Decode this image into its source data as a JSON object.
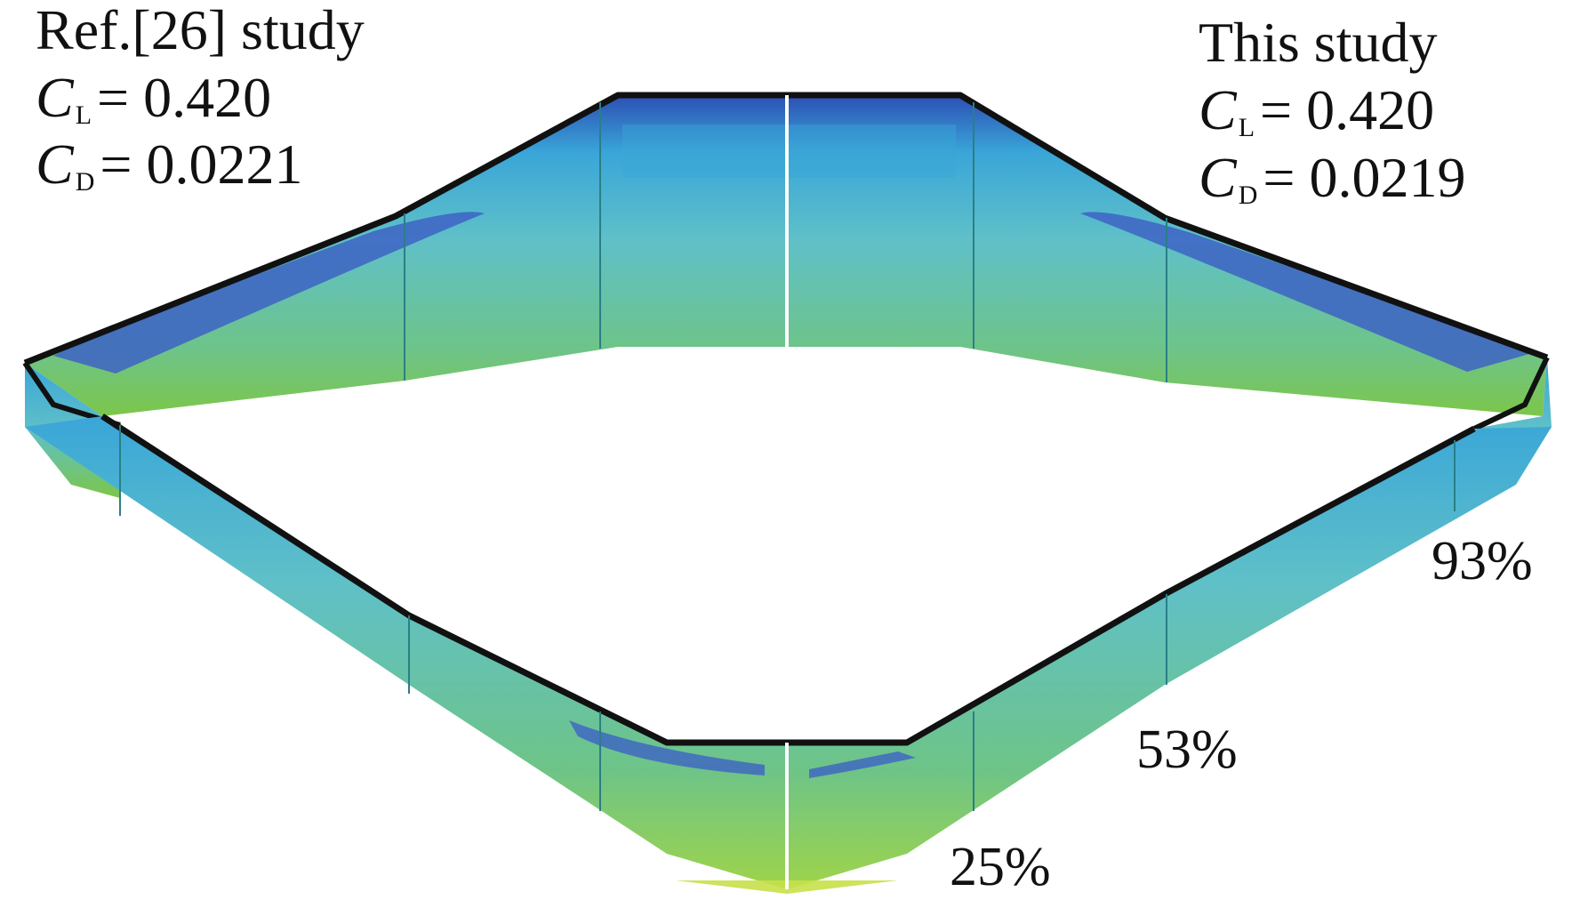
{
  "left_panel": {
    "title": "Ref.[26] study",
    "cl": {
      "symbol": "C",
      "subscript": "L",
      "value": "= 0.420"
    },
    "cd": {
      "symbol": "C",
      "subscript": "D",
      "value": "= 0.0221"
    }
  },
  "right_panel": {
    "title": "This study",
    "cl": {
      "symbol": "C",
      "subscript": "L",
      "value": "= 0.420"
    },
    "cd": {
      "symbol": "C",
      "subscript": "D",
      "value": "= 0.0219"
    }
  },
  "span_labels": {
    "inner": "25%",
    "middle": "53%",
    "outer": "93%"
  },
  "colors": {
    "deep_blue": "#2c4fb4",
    "mid_blue": "#3aa6d8",
    "teal": "#5fc0c8",
    "green": "#7cc64a",
    "yellow_green": "#c6e04a",
    "edge": "#111111"
  }
}
